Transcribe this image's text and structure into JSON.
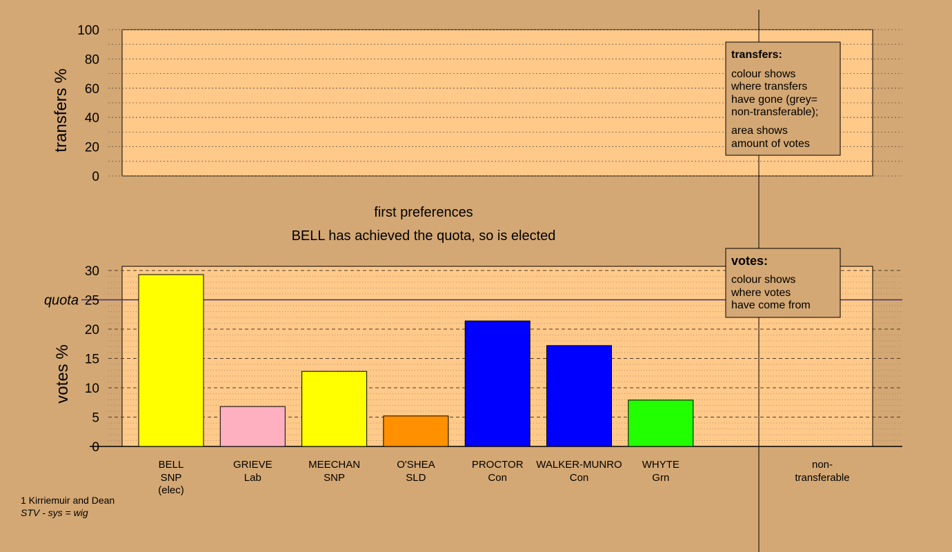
{
  "colors": {
    "background": "#d4a874",
    "panel": "#ffc98a",
    "axis": "#000000",
    "grid": "#6b5a45"
  },
  "titles": {
    "line1": "first preferences",
    "line2": "BELL has achieved the quota, so is elected"
  },
  "top_chart": {
    "ylabel": "transfers %",
    "yticks": [
      "0",
      "20",
      "40",
      "60",
      "80",
      "100"
    ],
    "ylim": [
      0,
      100
    ]
  },
  "legend_transfers": {
    "title": "transfers:",
    "lines1": [
      "colour shows",
      "where transfers",
      "have gone (grey=",
      "non-transferable);"
    ],
    "lines2": [
      "area shows",
      "amount of votes"
    ]
  },
  "legend_votes": {
    "title": "votes:",
    "lines": [
      "colour shows",
      "where votes",
      "have come from"
    ]
  },
  "footer": {
    "line1": "1 Kirriemuir and Dean",
    "line2": "STV - sys = wig"
  },
  "chart_data": {
    "type": "bar",
    "ylabel": "votes %",
    "ylim": [
      0,
      30
    ],
    "yticks": [
      "0",
      "5",
      "10",
      "15",
      "20",
      "25",
      "30"
    ],
    "quota": {
      "label": "quota",
      "value": 25
    },
    "categories": [
      {
        "name": "BELL",
        "party": "SNP",
        "note": "(elec)",
        "value": 29.3,
        "color": "#ffff00"
      },
      {
        "name": "GRIEVE",
        "party": "Lab",
        "note": "",
        "value": 6.8,
        "color": "#ffb0c0"
      },
      {
        "name": "MEECHAN",
        "party": "SNP",
        "note": "",
        "value": 12.8,
        "color": "#ffff00"
      },
      {
        "name": "O'SHEA",
        "party": "SLD",
        "note": "",
        "value": 5.2,
        "color": "#ff9000"
      },
      {
        "name": "PROCTOR",
        "party": "Con",
        "note": "",
        "value": 21.4,
        "color": "#0000ff"
      },
      {
        "name": "WALKER-MUNRO",
        "party": "Con",
        "note": "",
        "value": 17.2,
        "color": "#0000ff"
      },
      {
        "name": "WHYTE",
        "party": "Grn",
        "note": "",
        "value": 7.9,
        "color": "#22ff00"
      }
    ],
    "nontransferable": {
      "line1": "non-",
      "line2": "transferable"
    }
  }
}
